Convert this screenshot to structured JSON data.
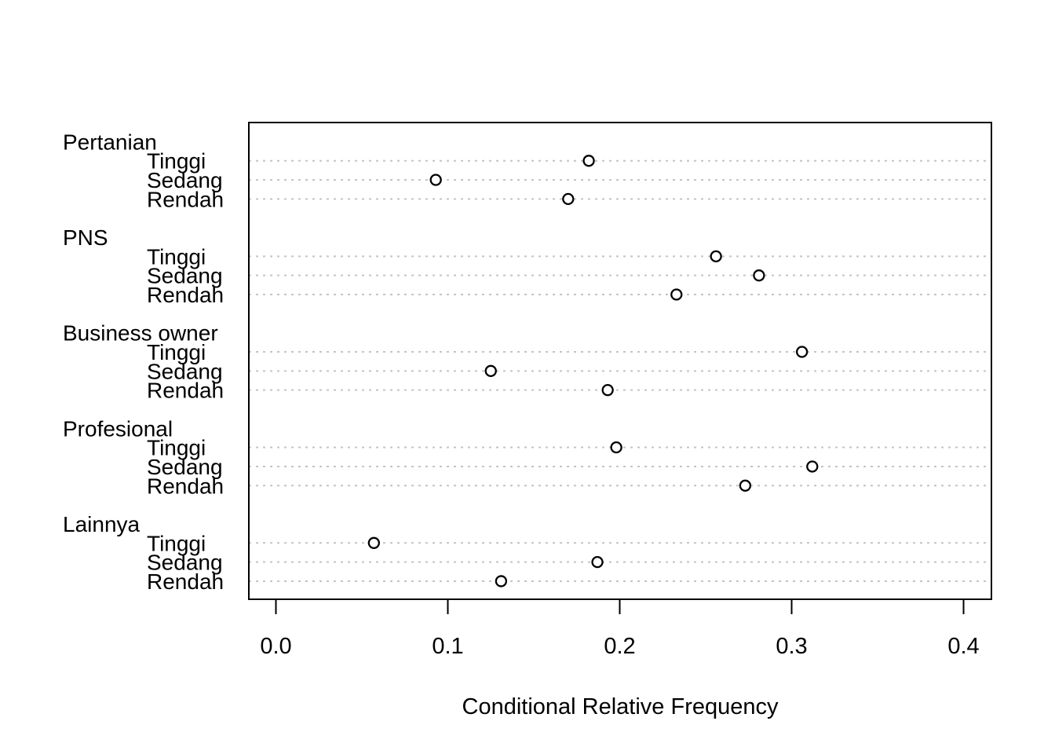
{
  "chart_data": {
    "type": "scatter",
    "variant": "dotchart",
    "title": "",
    "xlabel": "Conditional Relative Frequency",
    "ylabel": "",
    "xlim": [
      0.0,
      0.4
    ],
    "xticks": [
      0.0,
      0.1,
      0.2,
      0.3,
      0.4
    ],
    "xtick_labels": [
      "0.0",
      "0.1",
      "0.2",
      "0.3",
      "0.4"
    ],
    "grid": "dotted horizontal line per data row",
    "legend": "none",
    "groups": [
      {
        "label": "Pertanian",
        "rows": [
          {
            "label": "Tinggi",
            "value": 0.182
          },
          {
            "label": "Sedang",
            "value": 0.093
          },
          {
            "label": "Rendah",
            "value": 0.17
          }
        ]
      },
      {
        "label": "PNS",
        "rows": [
          {
            "label": "Tinggi",
            "value": 0.256
          },
          {
            "label": "Sedang",
            "value": 0.281
          },
          {
            "label": "Rendah",
            "value": 0.233
          }
        ]
      },
      {
        "label": "Business owner",
        "rows": [
          {
            "label": "Tinggi",
            "value": 0.306
          },
          {
            "label": "Sedang",
            "value": 0.125
          },
          {
            "label": "Rendah",
            "value": 0.193
          }
        ]
      },
      {
        "label": "Profesional",
        "rows": [
          {
            "label": "Tinggi",
            "value": 0.198
          },
          {
            "label": "Sedang",
            "value": 0.312
          },
          {
            "label": "Rendah",
            "value": 0.273
          }
        ]
      },
      {
        "label": "Lainnya",
        "rows": [
          {
            "label": "Tinggi",
            "value": 0.057
          },
          {
            "label": "Sedang",
            "value": 0.187
          },
          {
            "label": "Rendah",
            "value": 0.131
          }
        ]
      }
    ],
    "point_style": {
      "marker": "open-circle",
      "stroke": "#000000",
      "fill": "#ffffff"
    },
    "colors": {
      "background": "#ffffff",
      "axis": "#000000",
      "text": "#000000",
      "grid": "#c4c4c4"
    }
  }
}
